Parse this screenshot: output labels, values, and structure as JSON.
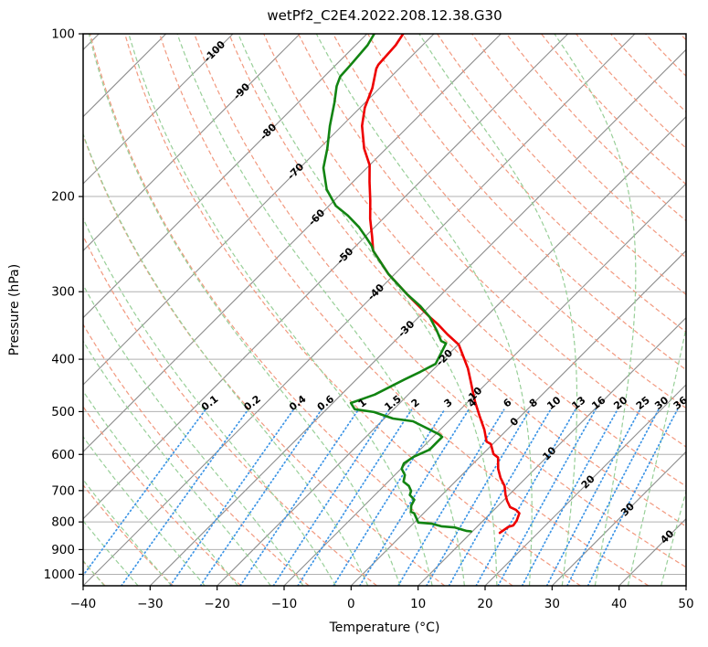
{
  "figure": {
    "title": "wetPf2_C2E4.2022.208.12.38.G30",
    "xlabel": "Temperature (°C)",
    "ylabel": "Pressure (hPa)"
  },
  "chart_data": {
    "type": "line",
    "variant": "skew-t-log-p",
    "title": "wetPf2_C2E4.2022.208.12.38.G30",
    "xlabel": "Temperature (°C)",
    "ylabel": "Pressure (hPa)",
    "x_range_c": [
      -40,
      50
    ],
    "x_ticks": [
      -40,
      -30,
      -20,
      -10,
      0,
      10,
      20,
      30,
      40,
      50
    ],
    "p_range_hpa": [
      100,
      1050
    ],
    "p_ticks": [
      100,
      200,
      300,
      400,
      500,
      600,
      700,
      800,
      900,
      1000
    ],
    "skew_degrees": 45,
    "grid": {
      "pressure_line_color": "#b0b0b0",
      "on": true
    },
    "isotherms": {
      "min": -120,
      "max": 50,
      "step": 10,
      "line_color": "#8e8e8e",
      "neg_label_color": "#2277cc",
      "zero_label_color": "#7a7a7a",
      "pos_label_color": "#cc2020",
      "labels": [
        {
          "t": -100,
          "p": 108
        },
        {
          "t": -90,
          "p": 128
        },
        {
          "t": -80,
          "p": 152
        },
        {
          "t": -70,
          "p": 180
        },
        {
          "t": -60,
          "p": 219
        },
        {
          "t": -50,
          "p": 258
        },
        {
          "t": -40,
          "p": 301
        },
        {
          "t": -30,
          "p": 352
        },
        {
          "t": -20,
          "p": 398
        },
        {
          "t": -10,
          "p": 467
        },
        {
          "t": 0,
          "p": 523
        },
        {
          "t": 10,
          "p": 599
        },
        {
          "t": 20,
          "p": 676
        },
        {
          "t": 30,
          "p": 760
        },
        {
          "t": 40,
          "p": 854
        }
      ]
    },
    "dry_adiabats": {
      "theta_min_c": -40,
      "theta_max_c": 210,
      "step_c": 10,
      "color": "#f2997f"
    },
    "moist_adiabats": {
      "t0_min_c": -60,
      "t0_max_c": 55,
      "step_c": 5,
      "color": "#98cf98"
    },
    "mixing_ratio": {
      "values_g_kg": [
        0.1,
        0.2,
        0.4,
        0.6,
        1,
        1.5,
        2,
        3,
        4,
        6,
        8,
        10,
        13,
        16,
        20,
        25,
        30,
        36
      ],
      "labels": [
        "0.1",
        "0.2",
        "0.4",
        "0.6",
        "1",
        "1.5",
        "2",
        "3",
        "4",
        "6",
        "8",
        "10",
        "13",
        "16",
        "20",
        "25",
        "30",
        "36"
      ],
      "line_color": "#3d95e6",
      "label_color": "#2277cc",
      "label_pressure_hpa": 483,
      "line_top_pressure_hpa": 496
    },
    "series": [
      {
        "name": "temperature",
        "color": "#ee0000",
        "points_p_t": [
          [
            100,
            -74.6
          ],
          [
            105,
            -74.0
          ],
          [
            114,
            -73.7
          ],
          [
            116,
            -73.4
          ],
          [
            126,
            -71.1
          ],
          [
            137,
            -69.3
          ],
          [
            148,
            -67.0
          ],
          [
            163,
            -63.3
          ],
          [
            175,
            -60.0
          ],
          [
            188,
            -57.5
          ],
          [
            203,
            -54.7
          ],
          [
            220,
            -51.9
          ],
          [
            237,
            -49.0
          ],
          [
            252,
            -46.7
          ],
          [
            278,
            -41.0
          ],
          [
            303,
            -35.2
          ],
          [
            334,
            -28.4
          ],
          [
            345,
            -26.0
          ],
          [
            360,
            -23.1
          ],
          [
            376,
            -19.9
          ],
          [
            395,
            -17.5
          ],
          [
            416,
            -15.0
          ],
          [
            439,
            -12.7
          ],
          [
            456,
            -11.1
          ],
          [
            480,
            -8.9
          ],
          [
            509,
            -6.2
          ],
          [
            540,
            -3.4
          ],
          [
            568,
            -1.3
          ],
          [
            574,
            -0.3
          ],
          [
            599,
            1.6
          ],
          [
            608,
            2.8
          ],
          [
            638,
            4.5
          ],
          [
            663,
            6.2
          ],
          [
            686,
            8.0
          ],
          [
            713,
            9.5
          ],
          [
            731,
            10.6
          ],
          [
            751,
            12.0
          ],
          [
            760,
            13.3
          ],
          [
            771,
            14.3
          ],
          [
            796,
            15.0
          ],
          [
            812,
            15.2
          ],
          [
            817,
            14.7
          ],
          [
            838,
            14.3
          ]
        ]
      },
      {
        "name": "dewpoint",
        "color": "#128412",
        "points_p_t": [
          [
            100,
            -78.9
          ],
          [
            105,
            -78.2
          ],
          [
            114,
            -77.8
          ],
          [
            120,
            -77.6
          ],
          [
            125,
            -76.7
          ],
          [
            134,
            -74.6
          ],
          [
            148,
            -71.8
          ],
          [
            163,
            -68.8
          ],
          [
            177,
            -66.5
          ],
          [
            194,
            -62.8
          ],
          [
            202,
            -60.6
          ],
          [
            208,
            -59.0
          ],
          [
            217,
            -55.7
          ],
          [
            228,
            -52.3
          ],
          [
            239,
            -49.5
          ],
          [
            247,
            -47.6
          ],
          [
            252,
            -46.7
          ],
          [
            278,
            -41.0
          ],
          [
            303,
            -35.2
          ],
          [
            319,
            -31.4
          ],
          [
            334,
            -28.4
          ],
          [
            354,
            -25.3
          ],
          [
            370,
            -23.1
          ],
          [
            374,
            -22.0
          ],
          [
            408,
            -20.5
          ],
          [
            422,
            -21.6
          ],
          [
            436,
            -22.8
          ],
          [
            465,
            -25.0
          ],
          [
            476,
            -26.5
          ],
          [
            482,
            -27.3
          ],
          [
            495,
            -25.8
          ],
          [
            501,
            -22.5
          ],
          [
            515,
            -18.7
          ],
          [
            521,
            -15.3
          ],
          [
            550,
            -9.6
          ],
          [
            557,
            -8.6
          ],
          [
            588,
            -8.6
          ],
          [
            606,
            -9.9
          ],
          [
            623,
            -10.4
          ],
          [
            638,
            -9.9
          ],
          [
            655,
            -8.5
          ],
          [
            674,
            -7.7
          ],
          [
            686,
            -6.3
          ],
          [
            701,
            -5.2
          ],
          [
            713,
            -4.8
          ],
          [
            728,
            -3.4
          ],
          [
            746,
            -3.0
          ],
          [
            766,
            -2.1
          ],
          [
            771,
            -1.4
          ],
          [
            802,
            0.6
          ],
          [
            806,
            2.8
          ],
          [
            815,
            4.6
          ],
          [
            819,
            6.8
          ],
          [
            831,
            9.0
          ],
          [
            833,
            9.8
          ]
        ]
      }
    ]
  }
}
